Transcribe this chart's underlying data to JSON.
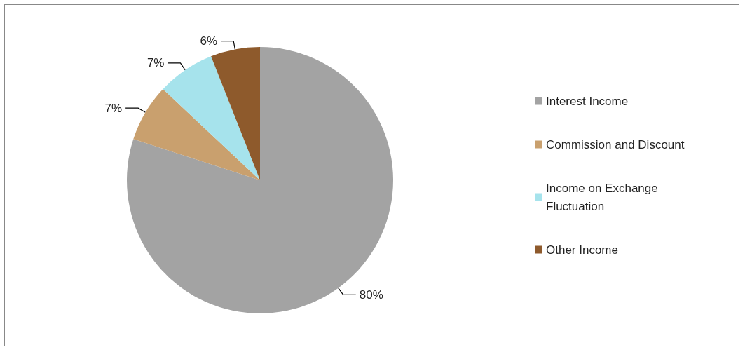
{
  "chart_data": {
    "type": "pie",
    "categories": [
      "Interest Income",
      "Commission and Discount",
      "Income on Exchange Fluctuation",
      "Other Income"
    ],
    "values": [
      80,
      7,
      7,
      6
    ],
    "value_labels": [
      "80%",
      "7%",
      "7%",
      "6%"
    ],
    "colors": [
      "#a3a3a3",
      "#c9a06e",
      "#a6e3ec",
      "#8e5a2c"
    ],
    "legend": "right"
  }
}
